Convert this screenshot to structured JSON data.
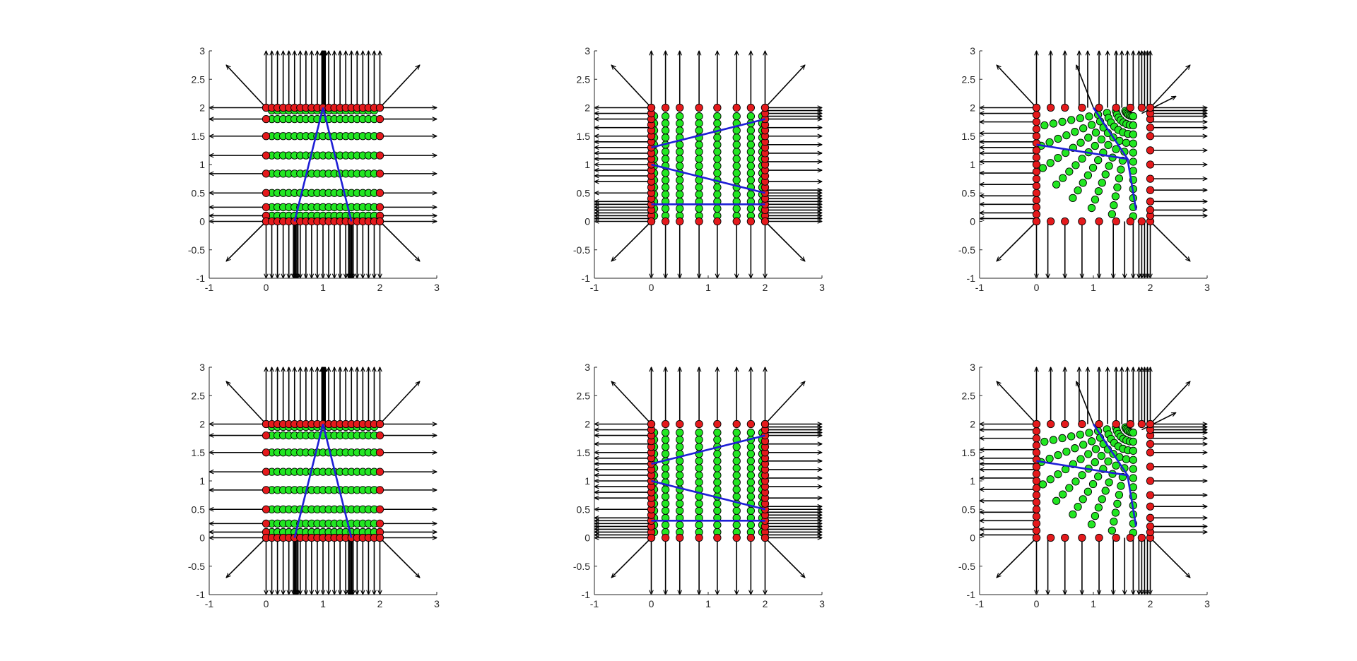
{
  "figure": {
    "layout": "2 rows x 3 columns of subplots"
  },
  "chart_data": [
    {
      "type": "scatter",
      "subplot": "row1-col1",
      "xlim": [
        -1,
        3
      ],
      "ylim": [
        -1,
        3
      ],
      "xticks": [
        "-1",
        "0",
        "1",
        "2",
        "3"
      ],
      "yticks": [
        "-1",
        "-0.5",
        "0",
        "0.5",
        "1",
        "1.5",
        "2",
        "2.5",
        "3"
      ],
      "boundary_points_color": "#e41a1c",
      "interior_points_color": "#22e622",
      "polyline_color": "#1f1fd6",
      "arrow_color": "#000000",
      "boundary_x": [
        0,
        0.1,
        0.2,
        0.3,
        0.4,
        0.5,
        0.6,
        0.7,
        0.8,
        0.9,
        1,
        1.1,
        1.2,
        1.3,
        1.4,
        1.5,
        1.6,
        1.7,
        1.8,
        1.9,
        2
      ],
      "interior_y": [
        0.1,
        0.25,
        0.5,
        0.84,
        1.16,
        1.5,
        1.8,
        1.95
      ],
      "interior_x": [
        0.1,
        0.2,
        0.3,
        0.4,
        0.5,
        0.6,
        0.7,
        0.8,
        0.9,
        1,
        1.1,
        1.2,
        1.3,
        1.4,
        1.5,
        1.6,
        1.7,
        1.8,
        1.9
      ],
      "polyline": [
        [
          0.5,
          0
        ],
        [
          1,
          2
        ],
        [
          1.5,
          0
        ]
      ]
    },
    {
      "type": "scatter",
      "subplot": "row1-col2",
      "xlim": [
        -1,
        3
      ],
      "ylim": [
        -1,
        3
      ],
      "xticks": [
        "-1",
        "0",
        "1",
        "2",
        "3"
      ],
      "yticks": [
        "-1",
        "-0.5",
        "0",
        "0.5",
        "1",
        "1.5",
        "2",
        "2.5",
        "3"
      ],
      "column_x": [
        0,
        0.25,
        0.5,
        0.84,
        1.16,
        1.5,
        1.75,
        2
      ],
      "polylines": [
        [
          [
            0,
            1.3
          ],
          [
            2,
            1.8
          ]
        ],
        [
          [
            0,
            1
          ],
          [
            2,
            0.5
          ]
        ],
        [
          [
            0,
            0.3
          ],
          [
            2,
            0.3
          ]
        ]
      ]
    },
    {
      "type": "scatter",
      "subplot": "row1-col3",
      "xlim": [
        -1,
        3
      ],
      "ylim": [
        -1,
        3
      ],
      "xticks": [
        "-1",
        "0",
        "1",
        "2",
        "3"
      ],
      "yticks": [
        "-1",
        "-0.5",
        "0",
        "0.5",
        "1",
        "1.5",
        "2",
        "2.5",
        "3"
      ],
      "polylines": [
        [
          [
            0,
            1.35
          ],
          [
            1.6,
            1.1
          ],
          [
            1.0,
            2
          ]
        ],
        [
          [
            1.6,
            1.1
          ],
          [
            1.75,
            0.2
          ]
        ]
      ]
    },
    {
      "type": "scatter",
      "subplot": "row2-col1",
      "xlim": [
        -1,
        3
      ],
      "ylim": [
        -1,
        3
      ],
      "xticks": [
        "-1",
        "0",
        "1",
        "2",
        "3"
      ],
      "yticks": [
        "-1",
        "-0.5",
        "0",
        "0.5",
        "1",
        "1.5",
        "2",
        "2.5",
        "3"
      ],
      "polyline": [
        [
          0.5,
          0
        ],
        [
          1,
          2
        ],
        [
          1.5,
          0
        ]
      ]
    },
    {
      "type": "scatter",
      "subplot": "row2-col2",
      "xlim": [
        -1,
        3
      ],
      "ylim": [
        -1,
        3
      ],
      "xticks": [
        "-1",
        "0",
        "1",
        "2",
        "3"
      ],
      "yticks": [
        "-1",
        "-0.5",
        "0",
        "0.5",
        "1",
        "1.5",
        "2",
        "2.5",
        "3"
      ],
      "polylines": [
        [
          [
            0,
            1.3
          ],
          [
            2,
            1.8
          ]
        ],
        [
          [
            0,
            1
          ],
          [
            2,
            0.5
          ]
        ],
        [
          [
            0,
            0.3
          ],
          [
            2,
            0.3
          ]
        ]
      ]
    },
    {
      "type": "scatter",
      "subplot": "row2-col3",
      "xlim": [
        -1,
        3
      ],
      "ylim": [
        -1,
        3
      ],
      "xticks": [
        "-1",
        "0",
        "1",
        "2",
        "3"
      ],
      "yticks": [
        "-1",
        "-0.5",
        "0",
        "0.5",
        "1",
        "1.5",
        "2",
        "2.5",
        "3"
      ],
      "polylines": [
        [
          [
            0,
            1.35
          ],
          [
            1.6,
            1.1
          ],
          [
            1.0,
            2
          ]
        ],
        [
          [
            1.6,
            1.1
          ],
          [
            1.75,
            0.2
          ]
        ]
      ]
    }
  ]
}
